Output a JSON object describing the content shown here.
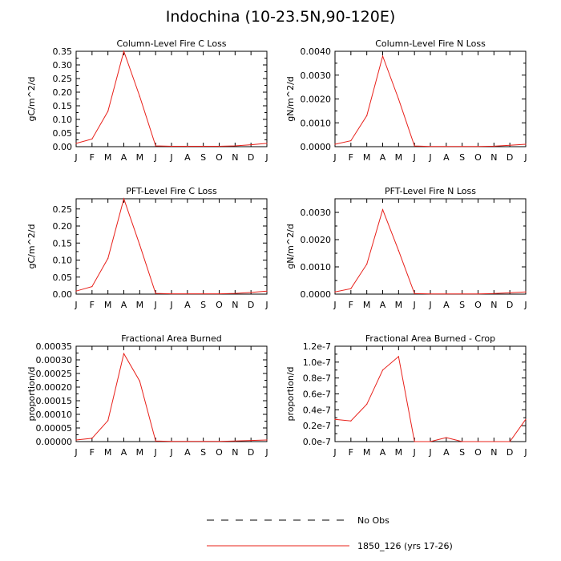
{
  "title": "Indochina (10-23.5N,90-120E)",
  "legend": {
    "entries": [
      {
        "label": "No Obs",
        "style": "dashed",
        "color": "#000000"
      },
      {
        "label": "1850_126 (yrs 17-26)",
        "style": "solid",
        "color": "#e8201a"
      }
    ]
  },
  "series_color": "#e8201a",
  "chart_data": [
    {
      "type": "line",
      "title": "Column-Level Fire C Loss",
      "ylabel": "gC/m^2/d",
      "x": [
        "J",
        "F",
        "M",
        "A",
        "M",
        "J",
        "J",
        "A",
        "S",
        "O",
        "N",
        "D",
        "J"
      ],
      "series": [
        {
          "values": [
            0.012,
            0.028,
            0.13,
            0.35,
            0.185,
            0.003,
            0.0015,
            0.0015,
            0.0015,
            0.0015,
            0.003,
            0.007,
            0.012
          ]
        }
      ],
      "ylim": [
        0,
        0.35
      ],
      "yticks": [
        0.0,
        0.05,
        0.1,
        0.15,
        0.2,
        0.25,
        0.3,
        0.35
      ],
      "ytick_labels": [
        "0.00",
        "0.05",
        "0.10",
        "0.15",
        "0.20",
        "0.25",
        "0.30",
        "0.35"
      ]
    },
    {
      "type": "line",
      "title": "Column-Level Fire N Loss",
      "ylabel": "gN/m^2/d",
      "x": [
        "J",
        "F",
        "M",
        "A",
        "M",
        "J",
        "J",
        "A",
        "S",
        "O",
        "N",
        "D",
        "J"
      ],
      "series": [
        {
          "values": [
            0.0001,
            0.00025,
            0.0013,
            0.0038,
            0.002,
            3e-05,
            1e-05,
            1e-05,
            1e-05,
            1e-05,
            2e-05,
            6e-05,
            0.0001
          ]
        }
      ],
      "ylim": [
        0,
        0.004
      ],
      "yticks": [
        0.0,
        0.001,
        0.002,
        0.003,
        0.004
      ],
      "ytick_labels": [
        "0.0000",
        "0.0010",
        "0.0020",
        "0.0030",
        "0.0040"
      ]
    },
    {
      "type": "line",
      "title": "PFT-Level Fire C Loss",
      "ylabel": "gC/m^2/d",
      "x": [
        "J",
        "F",
        "M",
        "A",
        "M",
        "J",
        "J",
        "A",
        "S",
        "O",
        "N",
        "D",
        "J"
      ],
      "series": [
        {
          "values": [
            0.009,
            0.022,
            0.105,
            0.28,
            0.145,
            0.002,
            0.001,
            0.001,
            0.001,
            0.001,
            0.002,
            0.005,
            0.009
          ]
        }
      ],
      "ylim": [
        0,
        0.28
      ],
      "yticks": [
        0.0,
        0.05,
        0.1,
        0.15,
        0.2,
        0.25
      ],
      "ytick_labels": [
        "0.00",
        "0.05",
        "0.10",
        "0.15",
        "0.20",
        "0.25"
      ]
    },
    {
      "type": "line",
      "title": "PFT-Level Fire N Loss",
      "ylabel": "gN/m^2/d",
      "x": [
        "J",
        "F",
        "M",
        "A",
        "M",
        "J",
        "J",
        "A",
        "S",
        "O",
        "N",
        "D",
        "J"
      ],
      "series": [
        {
          "values": [
            8e-05,
            0.0002,
            0.0011,
            0.0031,
            0.0016,
            2e-05,
            1e-05,
            1e-05,
            1e-05,
            1e-05,
            2e-05,
            5e-05,
            8e-05
          ]
        }
      ],
      "ylim": [
        0,
        0.0035
      ],
      "yticks": [
        0.0,
        0.001,
        0.002,
        0.003
      ],
      "ytick_labels": [
        "0.0000",
        "0.0010",
        "0.0020",
        "0.0030"
      ]
    },
    {
      "type": "line",
      "title": "Fractional Area Burned",
      "ylabel": "proportion/d",
      "x": [
        "J",
        "F",
        "M",
        "A",
        "M",
        "J",
        "J",
        "A",
        "S",
        "O",
        "N",
        "D",
        "J"
      ],
      "series": [
        {
          "values": [
            6e-06,
            1.2e-05,
            7.7e-05,
            0.000323,
            0.000222,
            2e-06,
            1e-06,
            1e-06,
            1e-06,
            1e-06,
            2e-06,
            4e-06,
            6e-06
          ]
        }
      ],
      "ylim": [
        0,
        0.00035
      ],
      "yticks": [
        0,
        5e-05,
        0.0001,
        0.00015,
        0.0002,
        0.00025,
        0.0003,
        0.00035
      ],
      "ytick_labels": [
        "0.00000",
        "0.00005",
        "0.00010",
        "0.00015",
        "0.00020",
        "0.00025",
        "0.00030",
        "0.00035"
      ]
    },
    {
      "type": "line",
      "title": "Fractional Area Burned - Crop",
      "ylabel": "proportion/d",
      "x": [
        "J",
        "F",
        "M",
        "A",
        "M",
        "J",
        "J",
        "A",
        "S",
        "O",
        "N",
        "D",
        "J"
      ],
      "series": [
        {
          "values": [
            2.8e-08,
            2.6e-08,
            4.7e-08,
            9e-08,
            1.07e-07,
            0.0,
            0.0,
            5e-09,
            0.0,
            0.0,
            0.0,
            0.0,
            2.8e-08
          ]
        }
      ],
      "ylim": [
        0,
        1.2e-07
      ],
      "yticks": [
        0,
        2e-08,
        4e-08,
        6e-08,
        8e-08,
        1e-07,
        1.2e-07
      ],
      "ytick_labels": [
        "0.0e-7",
        "0.2e-7",
        "0.4e-7",
        "0.6e-7",
        "0.8e-7",
        "1.0e-7",
        "1.2e-7"
      ]
    }
  ]
}
